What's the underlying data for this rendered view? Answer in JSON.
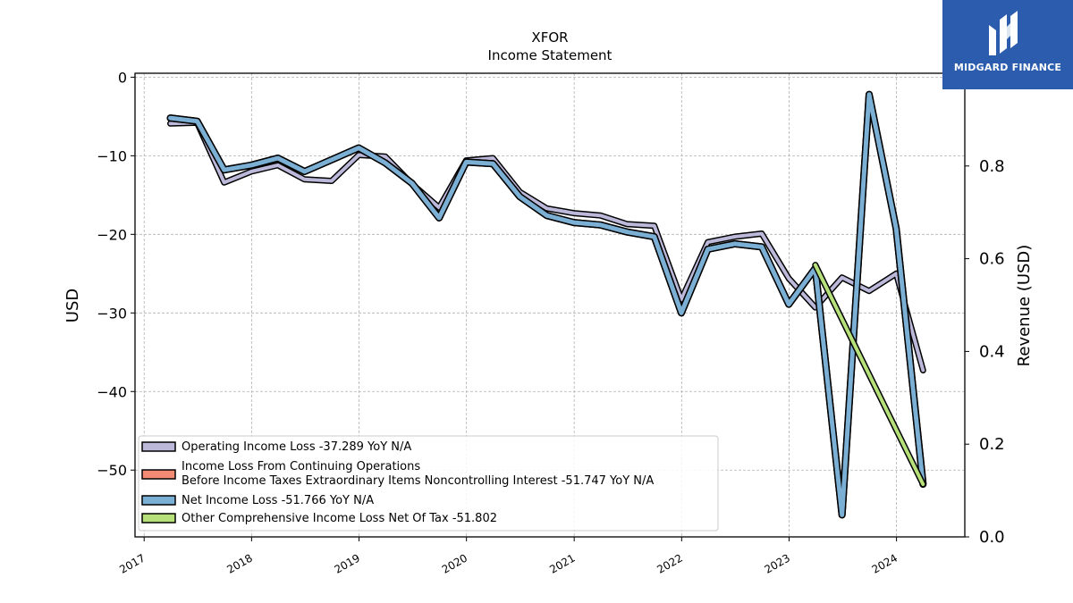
{
  "chart_data": {
    "type": "line",
    "title": "XFOR",
    "subtitle": "Income Statement",
    "ylabel": "USD",
    "ylabel_right": "Revenue (USD)",
    "x_ticks": [
      "2017",
      "2018",
      "2019",
      "2020",
      "2021",
      "2022",
      "2023",
      "2024"
    ],
    "ylim": [
      -58.5,
      0.5
    ],
    "y_ticks": [
      0,
      -10,
      -20,
      -30,
      -40,
      -50
    ],
    "y_tick_labels": [
      "0",
      "−10",
      "−20",
      "−30",
      "−40",
      "−50"
    ],
    "ylim_right": [
      0.0,
      1.0
    ],
    "y_ticks_right": [
      0.0,
      0.2,
      0.4,
      0.6,
      0.8
    ],
    "y_tick_labels_right": [
      "0.0",
      "0.2",
      "0.4",
      "0.6",
      "0.8"
    ],
    "grid": true,
    "legend_position": "lower-left",
    "series": [
      {
        "name": "Operating Income Loss  -37.289 YoY N/A",
        "color": "#bcb8d9",
        "x": [
          "2017-03-31",
          "2017-06-30",
          "2017-09-30",
          "2017-12-31",
          "2018-03-31",
          "2018-06-30",
          "2018-09-30",
          "2018-12-31",
          "2019-03-31",
          "2019-06-30",
          "2019-09-30",
          "2019-12-31",
          "2020-03-31",
          "2020-06-30",
          "2020-09-30",
          "2020-12-31",
          "2021-03-31",
          "2021-06-30",
          "2021-09-30",
          "2021-12-31",
          "2022-03-31",
          "2022-06-30",
          "2022-09-30",
          "2022-12-31",
          "2023-03-31",
          "2023-06-30",
          "2023-09-30",
          "2023-12-31",
          "2024-03-31"
        ],
        "values": [
          -5.9,
          -5.8,
          -13.4,
          -12.0,
          -11.2,
          -13.0,
          -13.2,
          -9.9,
          -10.1,
          -13.6,
          -16.6,
          -10.6,
          -10.3,
          -14.6,
          -16.7,
          -17.3,
          -17.6,
          -18.7,
          -18.9,
          -28.3,
          -21.0,
          -20.3,
          -19.9,
          -25.6,
          -29.3,
          -25.5,
          -27.2,
          -25.0,
          -37.3
        ],
        "line_width": 4
      },
      {
        "name": "Income Loss From Continuing Operations\nBefore Income Taxes Extraordinary Items Noncontrolling Interest  -51.747 YoY N/A",
        "color": "#f38b74",
        "x": [
          "2017-03-31",
          "2017-06-30",
          "2017-09-30",
          "2017-12-31",
          "2018-03-31",
          "2018-06-30",
          "2018-09-30",
          "2018-12-31",
          "2019-03-31",
          "2019-06-30",
          "2019-09-30",
          "2019-12-31",
          "2020-03-31",
          "2020-06-30",
          "2020-09-30",
          "2020-12-31",
          "2021-03-31",
          "2021-06-30",
          "2021-09-30",
          "2021-12-31",
          "2022-03-31",
          "2022-06-30",
          "2022-09-30",
          "2022-12-31",
          "2023-03-31",
          "2023-06-30",
          "2023-09-30",
          "2023-12-31",
          "2024-03-31"
        ],
        "values": [
          -5.2,
          -5.6,
          -11.8,
          -11.2,
          -10.3,
          -12.0,
          -10.5,
          -9.0,
          -10.9,
          -13.5,
          -17.9,
          -10.8,
          -11.0,
          -15.2,
          -17.6,
          -18.5,
          -18.8,
          -19.7,
          -20.3,
          -30.0,
          -21.9,
          -21.2,
          -21.6,
          -28.9,
          -24.3,
          -55.7,
          -2.2,
          -19.3,
          -51.7
        ],
        "line_width": 5
      },
      {
        "name": "Net Income Loss  -51.766 YoY N/A",
        "color": "#7bafd4",
        "x": [
          "2017-03-31",
          "2017-06-30",
          "2017-09-30",
          "2017-12-31",
          "2018-03-31",
          "2018-06-30",
          "2018-09-30",
          "2018-12-31",
          "2019-03-31",
          "2019-06-30",
          "2019-09-30",
          "2019-12-31",
          "2020-03-31",
          "2020-06-30",
          "2020-09-30",
          "2020-12-31",
          "2021-03-31",
          "2021-06-30",
          "2021-09-30",
          "2021-12-31",
          "2022-03-31",
          "2022-06-30",
          "2022-09-30",
          "2022-12-31",
          "2023-03-31",
          "2023-06-30",
          "2023-09-30",
          "2023-12-31",
          "2024-03-31"
        ],
        "values": [
          -5.2,
          -5.6,
          -11.8,
          -11.2,
          -10.3,
          -12.0,
          -10.5,
          -9.0,
          -10.9,
          -13.5,
          -17.9,
          -10.8,
          -11.0,
          -15.2,
          -17.6,
          -18.5,
          -18.8,
          -19.7,
          -20.3,
          -30.0,
          -21.9,
          -21.2,
          -21.6,
          -28.9,
          -24.3,
          -55.7,
          -2.2,
          -19.3,
          -51.8
        ],
        "line_width": 5
      },
      {
        "name": "Other Comprehensive Income Loss Net Of Tax  -51.802",
        "color": "#b5e07a",
        "x": [
          "2023-03-31",
          "2024-03-31"
        ],
        "values": [
          -23.9,
          -51.8
        ],
        "line_width": 4
      }
    ]
  },
  "branding": {
    "logo_text": "MIDGARD FINANCE",
    "logo_color": "#2b5cad"
  }
}
